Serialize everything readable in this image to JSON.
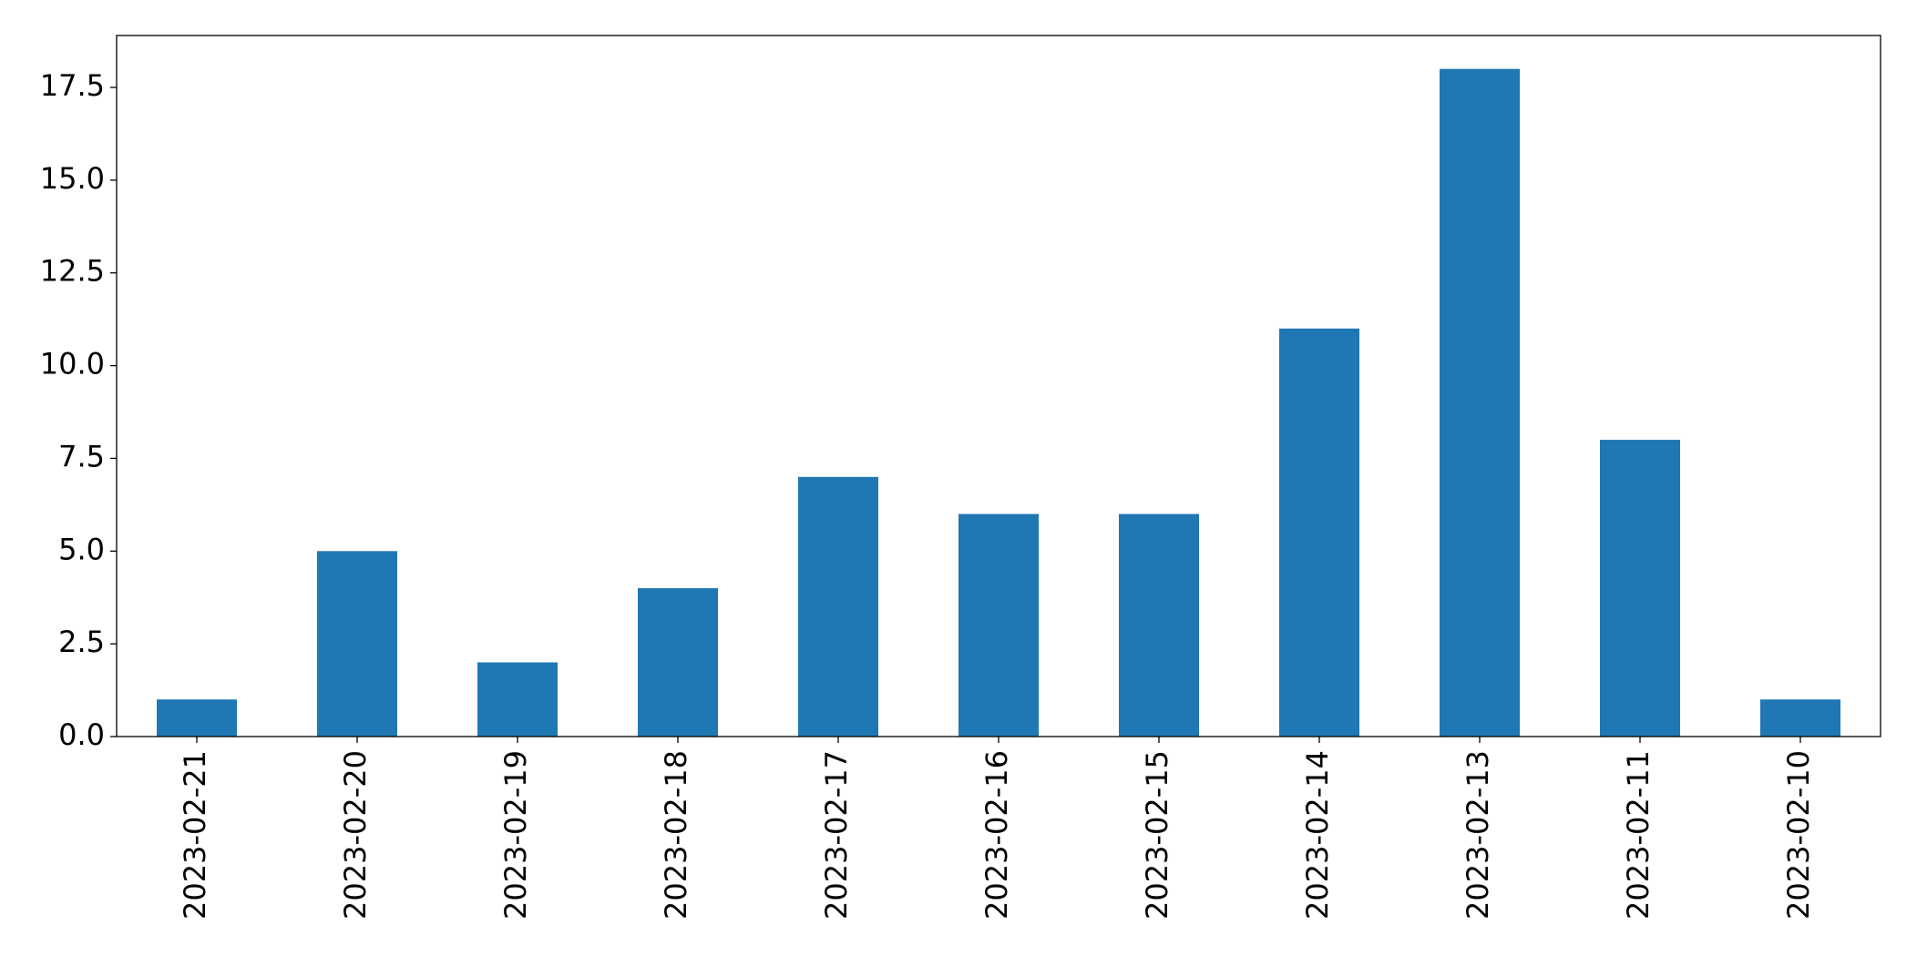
{
  "chart_data": {
    "type": "bar",
    "categories": [
      "2023-02-21",
      "2023-02-20",
      "2023-02-19",
      "2023-02-18",
      "2023-02-17",
      "2023-02-16",
      "2023-02-15",
      "2023-02-14",
      "2023-02-13",
      "2023-02-11",
      "2023-02-10"
    ],
    "values": [
      1,
      5,
      2,
      4,
      7,
      6,
      6,
      11,
      18,
      8,
      1
    ],
    "color": "#1f77b4",
    "ylim": [
      0,
      18.9
    ],
    "yticks": [
      {
        "value": 0,
        "label": "0.0"
      },
      2.5,
      {
        "value": 5,
        "label": "5.0"
      },
      7.5,
      {
        "value": 10,
        "label": "10.0"
      },
      12.5,
      {
        "value": 15,
        "label": "15.0"
      },
      17.5
    ],
    "grid": false
  }
}
